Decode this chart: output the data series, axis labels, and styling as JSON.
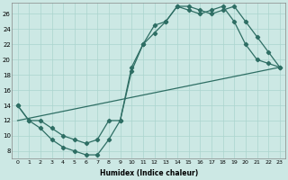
{
  "xlabel": "Humidex (Indice chaleur)",
  "ylabel": "",
  "background_color": "#cce8e4",
  "line_color": "#2e6e64",
  "xlim": [
    -0.5,
    23.5
  ],
  "ylim": [
    7,
    27.5
  ],
  "yticks": [
    8,
    10,
    12,
    14,
    16,
    18,
    20,
    22,
    24,
    26
  ],
  "xticks": [
    0,
    1,
    2,
    3,
    4,
    5,
    6,
    7,
    8,
    9,
    10,
    11,
    12,
    13,
    14,
    15,
    16,
    17,
    18,
    19,
    20,
    21,
    22,
    23
  ],
  "line1_x": [
    0,
    1,
    2,
    3,
    4,
    5,
    6,
    7,
    8,
    9,
    10,
    11,
    12,
    13,
    14,
    15,
    16,
    17,
    18,
    19,
    20,
    21,
    22,
    23
  ],
  "line1_y": [
    14,
    12,
    11,
    9.5,
    8.5,
    8,
    7.5,
    7.5,
    9.5,
    12,
    18.5,
    22,
    24.5,
    25,
    27,
    27,
    26.5,
    26,
    26.5,
    27,
    25,
    23,
    21,
    19
  ],
  "line2_x": [
    0,
    1,
    2,
    3,
    4,
    5,
    6,
    7,
    8,
    9,
    10,
    11,
    12,
    13,
    14,
    15,
    16,
    17,
    18,
    19,
    20,
    21,
    22,
    23
  ],
  "line2_y": [
    14,
    12,
    12,
    11,
    10,
    9.5,
    9,
    9.5,
    12,
    12,
    19,
    22,
    23.5,
    25,
    27,
    26.5,
    26,
    26.5,
    27,
    25,
    22,
    20,
    19.5,
    19
  ],
  "line3_x": [
    0,
    23
  ],
  "line3_y": [
    12,
    19
  ],
  "grid_color": "#aad4ce",
  "marker": "D",
  "markersize": 2.2,
  "linewidth": 0.9
}
